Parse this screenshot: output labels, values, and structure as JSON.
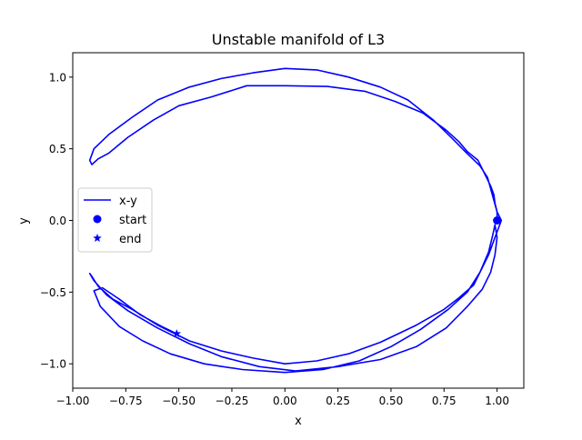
{
  "chart_data": {
    "type": "line",
    "title": "Unstable manifold of L3",
    "xlabel": "x",
    "ylabel": "y",
    "xlim": [
      -1.0,
      1.126
    ],
    "ylim": [
      -1.17,
      1.17
    ],
    "xticks": [
      -1.0,
      -0.75,
      -0.5,
      -0.25,
      0.0,
      0.25,
      0.5,
      0.75,
      1.0
    ],
    "xtick_labels": [
      "−1.00",
      "−0.75",
      "−0.50",
      "−0.25",
      "0.00",
      "0.25",
      "0.50",
      "0.75",
      "1.00"
    ],
    "yticks": [
      -1.0,
      -0.5,
      0.0,
      0.5,
      1.0
    ],
    "ytick_labels": [
      "−1.0",
      "−0.5",
      "0.0",
      "0.5",
      "1.0"
    ],
    "grid": false,
    "legend_position": "center-left",
    "colors": {
      "line": "#0000ff",
      "axes": "#000000",
      "background": "#ffffff"
    },
    "series": [
      {
        "name": "x-y",
        "kind": "line",
        "points": [
          [
            1.0,
            0.0
          ],
          [
            1.0,
            0.06
          ],
          [
            0.99,
            0.12
          ],
          [
            0.985,
            0.18
          ],
          [
            0.97,
            0.24
          ],
          [
            0.95,
            0.3
          ],
          [
            0.93,
            0.36
          ],
          [
            0.91,
            0.42
          ],
          [
            0.86,
            0.48
          ],
          [
            0.82,
            0.55
          ],
          [
            0.76,
            0.63
          ],
          [
            0.65,
            0.75
          ],
          [
            0.52,
            0.83
          ],
          [
            0.38,
            0.9
          ],
          [
            0.2,
            0.935
          ],
          [
            0.0,
            0.94
          ],
          [
            -0.18,
            0.94
          ],
          [
            -0.35,
            0.86
          ],
          [
            -0.5,
            0.8
          ],
          [
            -0.62,
            0.7
          ],
          [
            -0.74,
            0.58
          ],
          [
            -0.83,
            0.47
          ],
          [
            -0.88,
            0.43
          ],
          [
            -0.91,
            0.39
          ],
          [
            -0.92,
            0.42
          ],
          [
            -0.9,
            0.5
          ],
          [
            -0.83,
            0.6
          ],
          [
            -0.72,
            0.72
          ],
          [
            -0.6,
            0.84
          ],
          [
            -0.45,
            0.93
          ],
          [
            -0.3,
            0.99
          ],
          [
            -0.15,
            1.03
          ],
          [
            0.0,
            1.06
          ],
          [
            0.15,
            1.05
          ],
          [
            0.3,
            1.0
          ],
          [
            0.45,
            0.93
          ],
          [
            0.58,
            0.84
          ],
          [
            0.7,
            0.7
          ],
          [
            0.79,
            0.57
          ],
          [
            0.85,
            0.48
          ],
          [
            0.92,
            0.38
          ],
          [
            0.955,
            0.3
          ],
          [
            0.97,
            0.22
          ],
          [
            0.985,
            0.14
          ],
          [
            1.0,
            0.06
          ],
          [
            1.02,
            -0.0
          ],
          [
            1.0,
            -0.08
          ],
          [
            0.98,
            -0.16
          ],
          [
            0.96,
            -0.24
          ],
          [
            0.93,
            -0.33
          ],
          [
            0.89,
            -0.45
          ],
          [
            0.82,
            -0.54
          ],
          [
            0.75,
            -0.62
          ],
          [
            0.62,
            -0.73
          ],
          [
            0.45,
            -0.85
          ],
          [
            0.3,
            -0.93
          ],
          [
            0.15,
            -0.98
          ],
          [
            0.0,
            -1.0
          ],
          [
            -0.15,
            -0.96
          ],
          [
            -0.3,
            -0.91
          ],
          [
            -0.45,
            -0.84
          ],
          [
            -0.6,
            -0.73
          ],
          [
            -0.72,
            -0.62
          ],
          [
            -0.81,
            -0.55
          ],
          [
            -0.88,
            -0.46
          ],
          [
            -0.91,
            -0.39
          ],
          [
            -0.92,
            -0.37
          ],
          [
            -0.9,
            -0.42
          ],
          [
            -0.84,
            -0.52
          ],
          [
            -0.74,
            -0.63
          ],
          [
            -0.6,
            -0.75
          ],
          [
            -0.45,
            -0.86
          ],
          [
            -0.3,
            -0.95
          ],
          [
            -0.12,
            -1.02
          ],
          [
            0.05,
            -1.05
          ],
          [
            0.25,
            -1.02
          ],
          [
            0.45,
            -0.97
          ],
          [
            0.62,
            -0.88
          ],
          [
            0.76,
            -0.75
          ],
          [
            0.86,
            -0.6
          ],
          [
            0.93,
            -0.48
          ],
          [
            0.97,
            -0.36
          ],
          [
            0.99,
            -0.24
          ],
          [
            1.0,
            -0.12
          ],
          [
            0.99,
            -0.03
          ],
          [
            0.98,
            -0.1
          ],
          [
            0.96,
            -0.22
          ],
          [
            0.92,
            -0.36
          ],
          [
            0.86,
            -0.5
          ],
          [
            0.77,
            -0.62
          ],
          [
            0.64,
            -0.76
          ],
          [
            0.5,
            -0.88
          ],
          [
            0.35,
            -0.98
          ],
          [
            0.18,
            -1.04
          ],
          [
            0.0,
            -1.06
          ],
          [
            -0.2,
            -1.04
          ],
          [
            -0.38,
            -1.0
          ],
          [
            -0.54,
            -0.93
          ],
          [
            -0.67,
            -0.84
          ],
          [
            -0.78,
            -0.74
          ],
          [
            -0.87,
            -0.6
          ],
          [
            -0.9,
            -0.49
          ],
          [
            -0.86,
            -0.47
          ],
          [
            -0.78,
            -0.55
          ],
          [
            -0.68,
            -0.66
          ],
          [
            -0.58,
            -0.74
          ],
          [
            -0.51,
            -0.79
          ]
        ]
      },
      {
        "name": "start",
        "kind": "marker",
        "marker": "circle",
        "x": 1.0,
        "y": 0.0
      },
      {
        "name": "end",
        "kind": "marker",
        "marker": "star",
        "x": -0.51,
        "y": -0.79
      }
    ]
  }
}
